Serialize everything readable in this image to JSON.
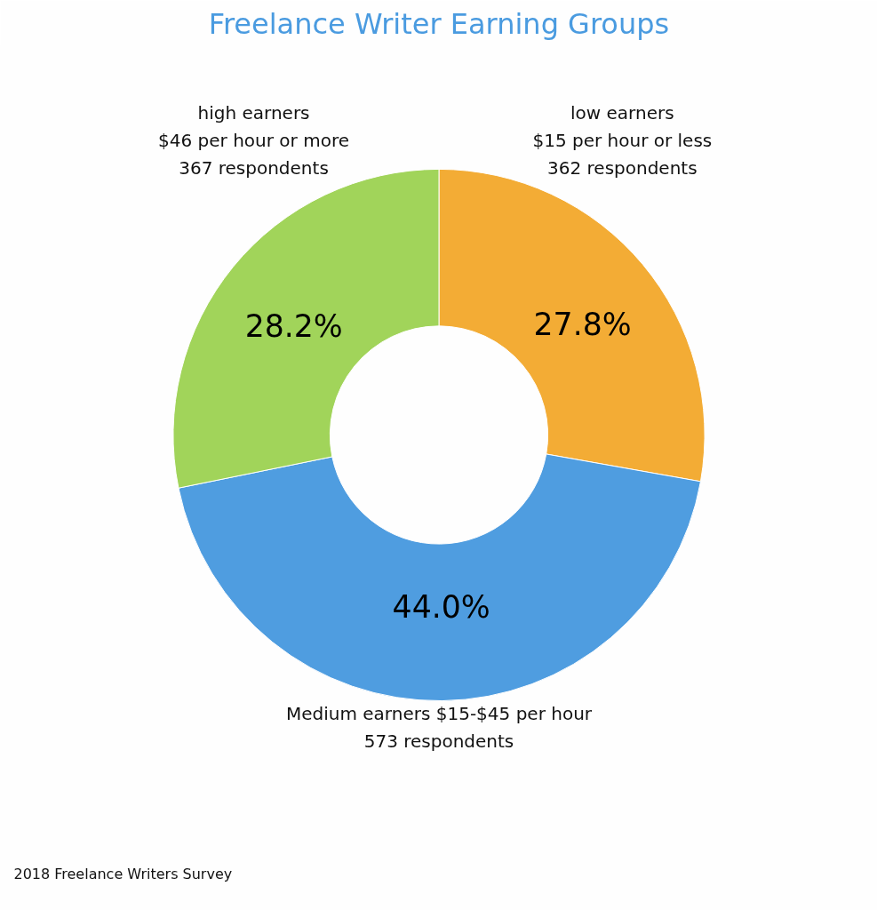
{
  "chart_data": {
    "type": "donut",
    "title": "Freelance Writer Earning Groups",
    "categories": [
      "low earners\n$15 per hour or less\n362 respondents",
      "Medium earners $15-$45 per hour\n573 respondents",
      "high earners\n$46 per hour or more\n367 respondents"
    ],
    "values": [
      27.8,
      44.0,
      28.2
    ],
    "colors": [
      "#f3ac35",
      "#4f9de0",
      "#a1d45a"
    ],
    "value_labels": [
      "27.8%",
      "44.0%",
      "28.2%"
    ],
    "annotations": [
      "2018 Freelance Writers Survey"
    ]
  }
}
